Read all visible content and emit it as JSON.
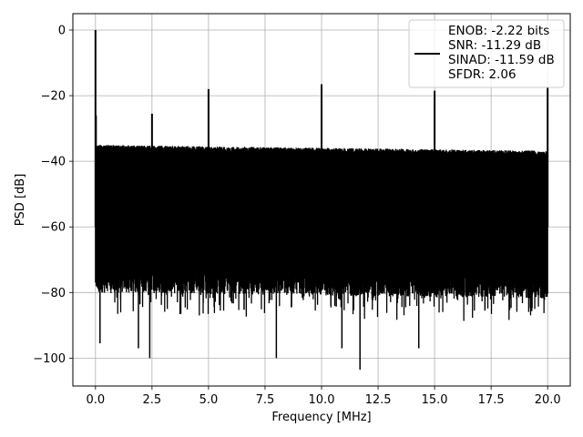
{
  "chart_data": {
    "type": "line",
    "title": "",
    "xlabel": "Frequency [MHz]",
    "ylabel": "PSD [dB]",
    "xlim": [
      -1.0,
      21.0
    ],
    "ylim": [
      -108.5,
      5.0
    ],
    "xticks": [
      0.0,
      2.5,
      5.0,
      7.5,
      10.0,
      12.5,
      15.0,
      17.5,
      20.0
    ],
    "xtick_labels": [
      "0.0",
      "2.5",
      "5.0",
      "7.5",
      "10.0",
      "12.5",
      "15.0",
      "17.5",
      "20.0"
    ],
    "yticks": [
      0,
      -20,
      -40,
      -60,
      -80,
      -100
    ],
    "ytick_labels": [
      "0",
      "−20",
      "−40",
      "−60",
      "−80",
      "−100"
    ],
    "grid": true,
    "legend_position": "top-right",
    "series": [
      {
        "name": "ENOB: -2.22 bits\nSNR: -11.29 dB\nSINAD: -11.59 dB\nSFDR: 2.06",
        "legend_lines": [
          "ENOB: -2.22 bits",
          "SNR: -11.29 dB",
          "SINAD: -11.59 dB",
          "SFDR: 2.06"
        ],
        "color": "#000000",
        "noise_floor_upper_db": -35,
        "noise_floor_lower_db": -80,
        "peaks": [
          {
            "x": 0.0,
            "y": 0.0
          },
          {
            "x": 0.02,
            "y": -26.0
          },
          {
            "x": 2.5,
            "y": -25.5
          },
          {
            "x": 5.0,
            "y": -18.0
          },
          {
            "x": 10.0,
            "y": -16.5
          },
          {
            "x": 15.0,
            "y": -18.5
          },
          {
            "x": 20.0,
            "y": -17.5
          }
        ],
        "dips": [
          {
            "x": 0.2,
            "y": -95.5
          },
          {
            "x": 2.4,
            "y": -100.0
          },
          {
            "x": 1.9,
            "y": -97.0
          },
          {
            "x": 8.0,
            "y": -100.0
          },
          {
            "x": 10.9,
            "y": -97.0
          },
          {
            "x": 11.7,
            "y": -103.5
          },
          {
            "x": 14.3,
            "y": -97.0
          }
        ]
      }
    ]
  }
}
